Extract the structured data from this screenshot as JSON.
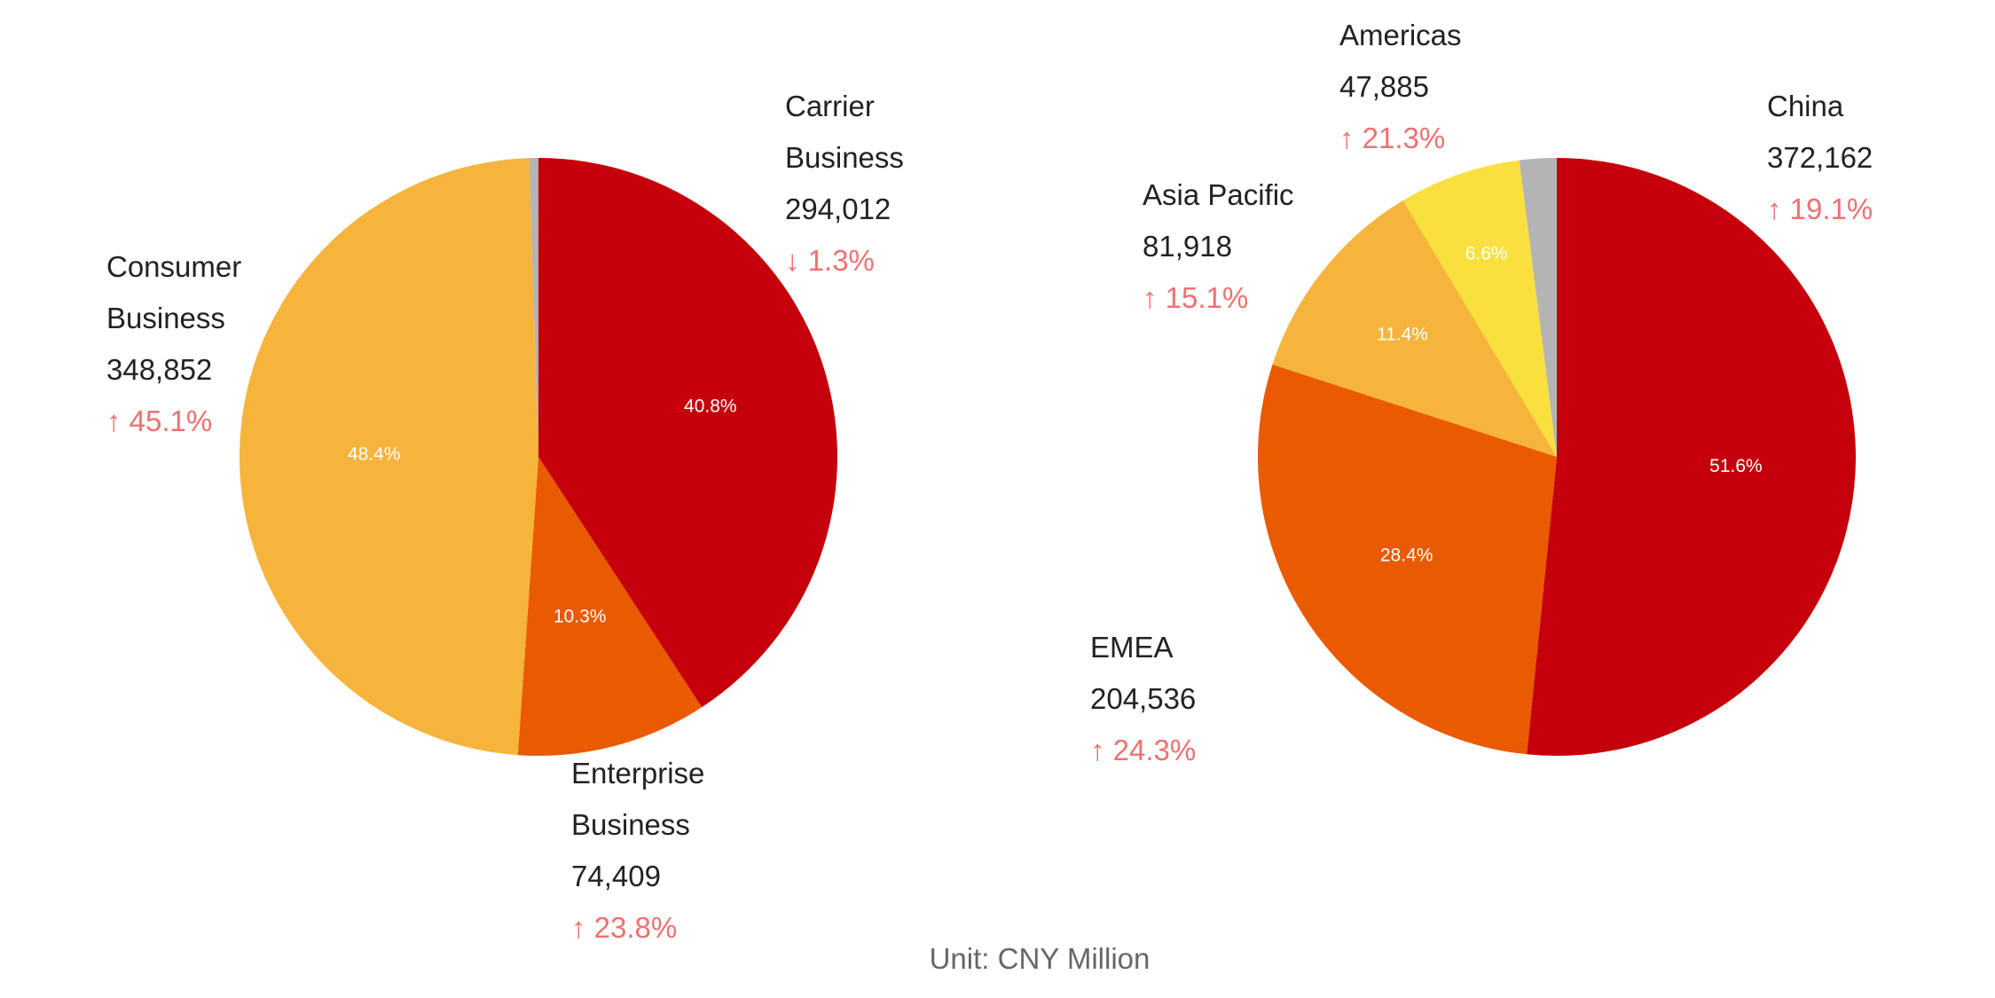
{
  "chart_data": [
    {
      "type": "pie",
      "start": "top",
      "direction": "clockwise",
      "slices": [
        {
          "name": "Carrier Business",
          "name_lines": [
            "Carrier",
            "Business"
          ],
          "value": 294012,
          "share_pct": 40.8,
          "share_label": "40.8%",
          "change": "↓ 1.3%",
          "color": "#C5000B"
        },
        {
          "name": "Enterprise Business",
          "name_lines": [
            "Enterprise",
            "Business"
          ],
          "value": 74409,
          "share_pct": 10.3,
          "share_label": "10.3%",
          "change": "↑ 23.8%",
          "color": "#EA5A00"
        },
        {
          "name": "Consumer Business",
          "name_lines": [
            "Consumer",
            "Business"
          ],
          "value": 348852,
          "share_pct": 48.4,
          "share_label": "48.4%",
          "change": "↑ 45.1%",
          "color": "#F6B43C"
        },
        {
          "name": "",
          "share_pct": 0.5,
          "color": "#B4B4B4"
        }
      ]
    },
    {
      "type": "pie",
      "start": "top",
      "direction": "clockwise",
      "slices": [
        {
          "name": "China",
          "name_lines": [
            "China"
          ],
          "value": 372162,
          "share_pct": 51.6,
          "share_label": "51.6%",
          "change": "↑ 19.1%",
          "color": "#C5000B"
        },
        {
          "name": "EMEA",
          "name_lines": [
            "EMEA"
          ],
          "value": 204536,
          "share_pct": 28.4,
          "share_label": "28.4%",
          "change": "↑ 24.3%",
          "color": "#EA5A00"
        },
        {
          "name": "Asia Pacific",
          "name_lines": [
            "Asia Pacific"
          ],
          "value": 81918,
          "share_pct": 11.4,
          "share_label": "11.4%",
          "change": "↑ 15.1%",
          "color": "#F6B43C"
        },
        {
          "name": "Americas",
          "name_lines": [
            "Americas"
          ],
          "value": 47885,
          "share_pct": 6.6,
          "share_label": "6.6%",
          "change": "↑ 21.3%",
          "color": "#F9E03F"
        },
        {
          "name": "",
          "share_pct": 2.0,
          "color": "#B4B4B4"
        }
      ]
    }
  ],
  "labels": {
    "carrier": {
      "l1": "Carrier",
      "l2": "Business",
      "value": "294,012",
      "change": "↓ 1.3%"
    },
    "consumer": {
      "l1": "Consumer",
      "l2": "Business",
      "value": "348,852",
      "change": "↑ 45.1%"
    },
    "enterprise": {
      "l1": "Enterprise",
      "l2": "Business",
      "value": "74,409",
      "change": "↑ 23.8%"
    },
    "china": {
      "l1": "China",
      "value": "372,162",
      "change": "↑ 19.1%"
    },
    "emea": {
      "l1": "EMEA",
      "value": "204,536",
      "change": "↑ 24.3%"
    },
    "asia": {
      "l1": "Asia Pacific",
      "value": "81,918",
      "change": "↑ 15.1%"
    },
    "americas": {
      "l1": "Americas",
      "value": "47,885",
      "change": "↑ 21.3%"
    }
  },
  "unit": "Unit: CNY Million"
}
